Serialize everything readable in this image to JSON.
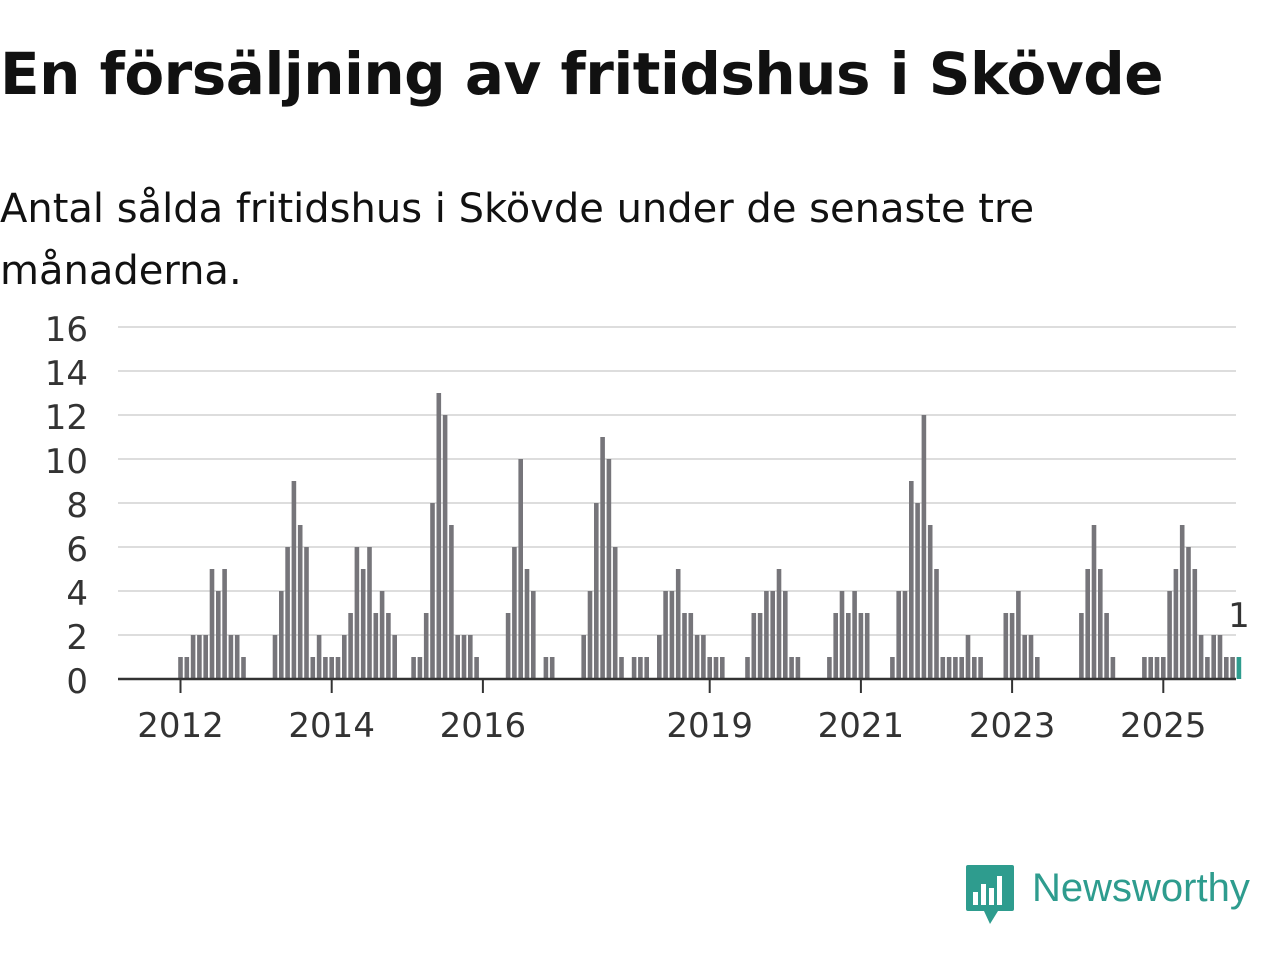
{
  "title": "En försäljning av fritidshus i Skövde",
  "subtitle": "Antal sålda fritidshus i Skövde under de senaste tre månaderna.",
  "brand": "Newsworthy",
  "colors": {
    "bar": "#76757a",
    "highlight": "#2e9c8e",
    "grid": "#dddddd",
    "axis": "#333333",
    "brand": "#2e9c8e"
  },
  "chart_data": {
    "type": "bar",
    "xlabel": "",
    "ylabel": "",
    "ylim": [
      0,
      16
    ],
    "yticks": [
      0,
      2,
      4,
      6,
      8,
      10,
      12,
      14,
      16
    ],
    "xticks": [
      "2012",
      "2014",
      "2016",
      "2019",
      "2021",
      "2023",
      "2025"
    ],
    "grid": true,
    "start": "2011-04",
    "interval": "month",
    "values": [
      0,
      0,
      0,
      0,
      0,
      0,
      0,
      0,
      0,
      1,
      1,
      2,
      2,
      2,
      5,
      4,
      5,
      2,
      2,
      1,
      0,
      0,
      0,
      0,
      2,
      4,
      6,
      9,
      7,
      6,
      1,
      2,
      1,
      1,
      1,
      2,
      3,
      6,
      5,
      6,
      3,
      4,
      3,
      2,
      0,
      0,
      1,
      1,
      3,
      8,
      13,
      12,
      7,
      2,
      2,
      2,
      1,
      0,
      0,
      0,
      0,
      3,
      6,
      10,
      5,
      4,
      0,
      1,
      1,
      0,
      0,
      0,
      0,
      2,
      4,
      8,
      11,
      10,
      6,
      1,
      0,
      1,
      1,
      1,
      0,
      2,
      4,
      4,
      5,
      3,
      3,
      2,
      2,
      1,
      1,
      1,
      0,
      0,
      0,
      1,
      3,
      3,
      4,
      4,
      5,
      4,
      1,
      1,
      0,
      0,
      0,
      0,
      1,
      3,
      4,
      3,
      4,
      3,
      3,
      0,
      0,
      0,
      1,
      4,
      4,
      9,
      8,
      12,
      7,
      5,
      1,
      1,
      1,
      1,
      2,
      1,
      1,
      0,
      0,
      0,
      3,
      3,
      4,
      2,
      2,
      1,
      0,
      0,
      0,
      0,
      0,
      0,
      3,
      5,
      7,
      5,
      3,
      1,
      0,
      0,
      0,
      0,
      1,
      1,
      1,
      1,
      4,
      5,
      7,
      6,
      5,
      2,
      1,
      2,
      2,
      1,
      1,
      1
    ],
    "highlight_last": true,
    "last_label": "1"
  }
}
